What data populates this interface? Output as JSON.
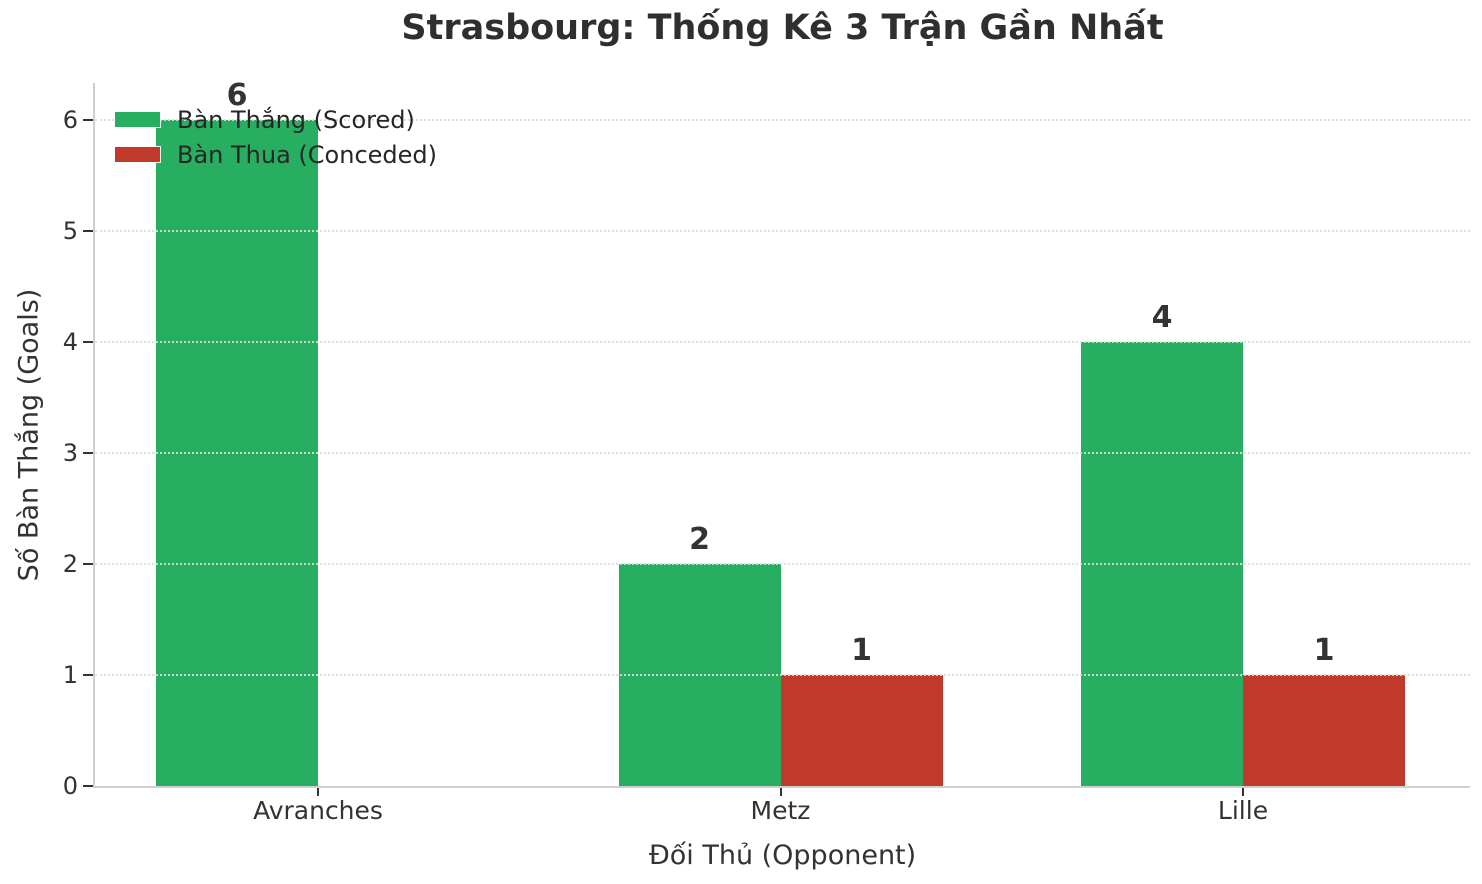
{
  "chart_data": {
    "type": "bar",
    "title": "Strasbourg: Thống Kê 3 Trận Gần Nhất",
    "categories": [
      "Avranches",
      "Metz",
      "Lille"
    ],
    "series": [
      {
        "name": "Bàn Thắng (Scored)",
        "color": "#27ae60",
        "values": [
          6,
          2,
          4
        ]
      },
      {
        "name": "Bàn Thua (Conceded)",
        "color": "#c0392b",
        "values": [
          0,
          1,
          1
        ]
      }
    ],
    "xlabel": "Đối Thủ (Opponent)",
    "ylabel": "Số Bàn Thắng (Goals)",
    "ylim": [
      0,
      6.32
    ],
    "yticks": [
      0,
      1,
      2,
      3,
      4,
      5,
      6
    ],
    "bar_width_fraction": 0.35,
    "grid": "horizontal-dotted-over-bars",
    "grid_color": "#dddddd",
    "legend_position": "upper-left",
    "value_labels_shown": true,
    "zero_values_have_no_bar_or_label": true,
    "background_color": "#ffffff",
    "text_color": "#333333"
  }
}
